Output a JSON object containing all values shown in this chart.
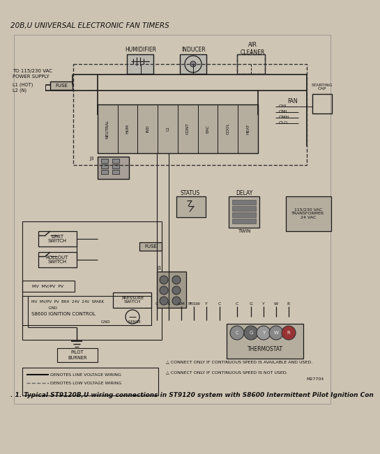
{
  "bg_color": "#cdc3b2",
  "inner_bg": "#c8bfaf",
  "title_top": "20B,U UNIVERSAL ELECTRONIC FAN TIMERS",
  "caption_bottom": ". 1. Typical ST9120B,U wiring connections in ST9120 system with S8600 Intermittent Pilot Ignition Con",
  "fig_width": 4.74,
  "fig_height": 6.32,
  "line_color": "#1a1a1a",
  "dashed_color": "#2a2a2a",
  "labels": {
    "note1": "△ CONNECT ONLY IF CONTINUOUS SPEED IS AVAILABLE AND USED.",
    "note2": "△ CONNECT ONLY IF CONTINUOUS SPEED IS NOT USED.",
    "m27704": "M27704"
  }
}
